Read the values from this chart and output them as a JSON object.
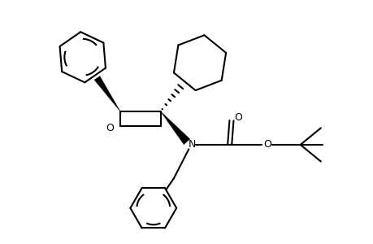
{
  "bg_color": "#ffffff",
  "line_color": "#000000",
  "line_width": 1.5,
  "fig_width": 4.6,
  "fig_height": 3.0,
  "dpi": 100,
  "xlim": [
    0,
    10
  ],
  "ylim": [
    0,
    6.52
  ]
}
